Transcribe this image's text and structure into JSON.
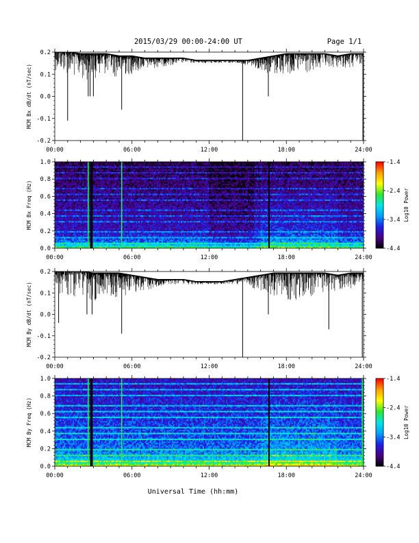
{
  "header": {
    "date_range": "2015/03/29  00:00-24:00 UT",
    "page": "Page 1/1"
  },
  "x_axis": {
    "ticks": [
      "00:00",
      "06:00",
      "12:00",
      "18:00",
      "24:00"
    ],
    "title": "Universal Time (hh:mm)"
  },
  "colors": {
    "line": "#000000",
    "gap": "#000000",
    "colormap": [
      "#000000",
      "#4b0082",
      "#1e1ee6",
      "#00a0ff",
      "#00e6e6",
      "#32e632",
      "#ffff00",
      "#ffa000",
      "#ff0000"
    ]
  },
  "chart_data": [
    {
      "type": "line",
      "ylabel": "MCM Bx dB/dt (nT/sec)",
      "xlim": [
        0,
        24
      ],
      "ylim": [
        -0.2,
        0.2
      ],
      "yticks": [
        "0.2",
        "0.1",
        "0.0",
        "-0.1",
        "-0.2"
      ],
      "baseline_top": [
        [
          0,
          0.2
        ],
        [
          1,
          0.2
        ],
        [
          2,
          0.19
        ],
        [
          3,
          0.19
        ],
        [
          4,
          0.19
        ],
        [
          5,
          0.18
        ],
        [
          6,
          0.18
        ],
        [
          7,
          0.17
        ],
        [
          8,
          0.17
        ],
        [
          9,
          0.17
        ],
        [
          10,
          0.17
        ],
        [
          11,
          0.16
        ],
        [
          12,
          0.16
        ],
        [
          13,
          0.16
        ],
        [
          14,
          0.16
        ],
        [
          15,
          0.16
        ],
        [
          16,
          0.17
        ],
        [
          17,
          0.18
        ],
        [
          18,
          0.19
        ],
        [
          19,
          0.19
        ],
        [
          20,
          0.19
        ],
        [
          21,
          0.19
        ],
        [
          22,
          0.18
        ],
        [
          23,
          0.19
        ],
        [
          24,
          0.19
        ]
      ],
      "envelope_low": [
        [
          0,
          0.12
        ],
        [
          1,
          0.1
        ],
        [
          2,
          0.07
        ],
        [
          3,
          0.08
        ],
        [
          4,
          0.1
        ],
        [
          5,
          0.08
        ],
        [
          6,
          0.1
        ],
        [
          7,
          0.12
        ],
        [
          8,
          0.13
        ],
        [
          9,
          0.14
        ],
        [
          10,
          0.15
        ],
        [
          11,
          0.15
        ],
        [
          12,
          0.15
        ],
        [
          13,
          0.15
        ],
        [
          14,
          0.15
        ],
        [
          15,
          0.14
        ],
        [
          16,
          0.12
        ],
        [
          17,
          0.09
        ],
        [
          18,
          0.1
        ],
        [
          19,
          0.09
        ],
        [
          20,
          0.1
        ],
        [
          21,
          0.12
        ],
        [
          22,
          0.13
        ],
        [
          23,
          0.12
        ],
        [
          24,
          0.14
        ]
      ],
      "spikes": [
        [
          1.0,
          -0.11
        ],
        [
          2.6,
          0.0
        ],
        [
          2.75,
          0.0
        ],
        [
          3.0,
          0.0
        ],
        [
          5.2,
          -0.06
        ],
        [
          14.6,
          -0.2
        ],
        [
          16.6,
          0.0
        ],
        [
          23.95,
          -0.2
        ]
      ]
    },
    {
      "type": "heatmap",
      "ylabel": "MCM Bx Freq (Hz)",
      "colorbar_label": "Log10 Power",
      "xlim": [
        0,
        24
      ],
      "ylim": [
        0,
        1
      ],
      "yticks": [
        "1.0",
        "0.8",
        "0.6",
        "0.4",
        "0.2",
        "0.0"
      ],
      "colorbar_ticks": [
        "-1.4",
        "-2.4",
        "-3.4",
        "-4.4"
      ],
      "color_range": [
        -4.4,
        -1.4
      ],
      "harmonic_step_hz": 0.0625,
      "data_gaps": [
        [
          2.75,
          2.95
        ],
        [
          16.6,
          16.7
        ]
      ],
      "bright_columns": [
        2.6,
        5.2
      ]
    },
    {
      "type": "line",
      "ylabel": "MCM By dB/dt (nT/sec)",
      "xlim": [
        0,
        24
      ],
      "ylim": [
        -0.2,
        0.2
      ],
      "yticks": [
        "0.2",
        "0.1",
        "0.0",
        "-0.1",
        "-0.2"
      ],
      "baseline_top": [
        [
          0,
          0.2
        ],
        [
          1,
          0.2
        ],
        [
          2,
          0.2
        ],
        [
          3,
          0.19
        ],
        [
          4,
          0.19
        ],
        [
          5,
          0.19
        ],
        [
          6,
          0.18
        ],
        [
          7,
          0.17
        ],
        [
          8,
          0.16
        ],
        [
          9,
          0.16
        ],
        [
          10,
          0.16
        ],
        [
          11,
          0.15
        ],
        [
          12,
          0.15
        ],
        [
          13,
          0.15
        ],
        [
          14,
          0.16
        ],
        [
          15,
          0.17
        ],
        [
          16,
          0.18
        ],
        [
          17,
          0.19
        ],
        [
          18,
          0.19
        ],
        [
          19,
          0.19
        ],
        [
          20,
          0.19
        ],
        [
          21,
          0.19
        ],
        [
          22,
          0.18
        ],
        [
          23,
          0.19
        ],
        [
          24,
          0.19
        ]
      ],
      "envelope_low": [
        [
          0,
          0.11
        ],
        [
          1,
          0.08
        ],
        [
          2,
          0.06
        ],
        [
          3,
          0.06
        ],
        [
          4,
          0.09
        ],
        [
          5,
          0.07
        ],
        [
          6,
          0.09
        ],
        [
          7,
          0.11
        ],
        [
          8,
          0.13
        ],
        [
          9,
          0.14
        ],
        [
          10,
          0.14
        ],
        [
          11,
          0.14
        ],
        [
          12,
          0.14
        ],
        [
          13,
          0.14
        ],
        [
          14,
          0.14
        ],
        [
          15,
          0.13
        ],
        [
          16,
          0.11
        ],
        [
          17,
          0.08
        ],
        [
          18,
          0.06
        ],
        [
          19,
          0.07
        ],
        [
          20,
          0.08
        ],
        [
          21,
          0.1
        ],
        [
          22,
          0.11
        ],
        [
          23,
          0.12
        ],
        [
          24,
          0.13
        ]
      ],
      "spikes": [
        [
          0.3,
          -0.04
        ],
        [
          2.5,
          0.0
        ],
        [
          2.9,
          0.0
        ],
        [
          5.2,
          -0.09
        ],
        [
          14.6,
          -0.2
        ],
        [
          16.6,
          0.0
        ],
        [
          21.3,
          -0.07
        ],
        [
          23.9,
          -0.2
        ]
      ]
    },
    {
      "type": "heatmap",
      "ylabel": "MCM By Freq (Hz)",
      "colorbar_label": "Log10 Power",
      "xlim": [
        0,
        24
      ],
      "ylim": [
        0,
        1
      ],
      "yticks": [
        "1.0",
        "0.8",
        "0.6",
        "0.4",
        "0.2",
        "0.0"
      ],
      "colorbar_ticks": [
        "-1.4",
        "-2.4",
        "-3.4",
        "-4.4"
      ],
      "color_range": [
        -4.4,
        -1.4
      ],
      "harmonic_step_hz": 0.0625,
      "data_gaps": [
        [
          2.75,
          2.95
        ],
        [
          16.6,
          16.7
        ]
      ],
      "bright_columns": [
        2.6,
        5.2,
        23.9
      ]
    }
  ]
}
